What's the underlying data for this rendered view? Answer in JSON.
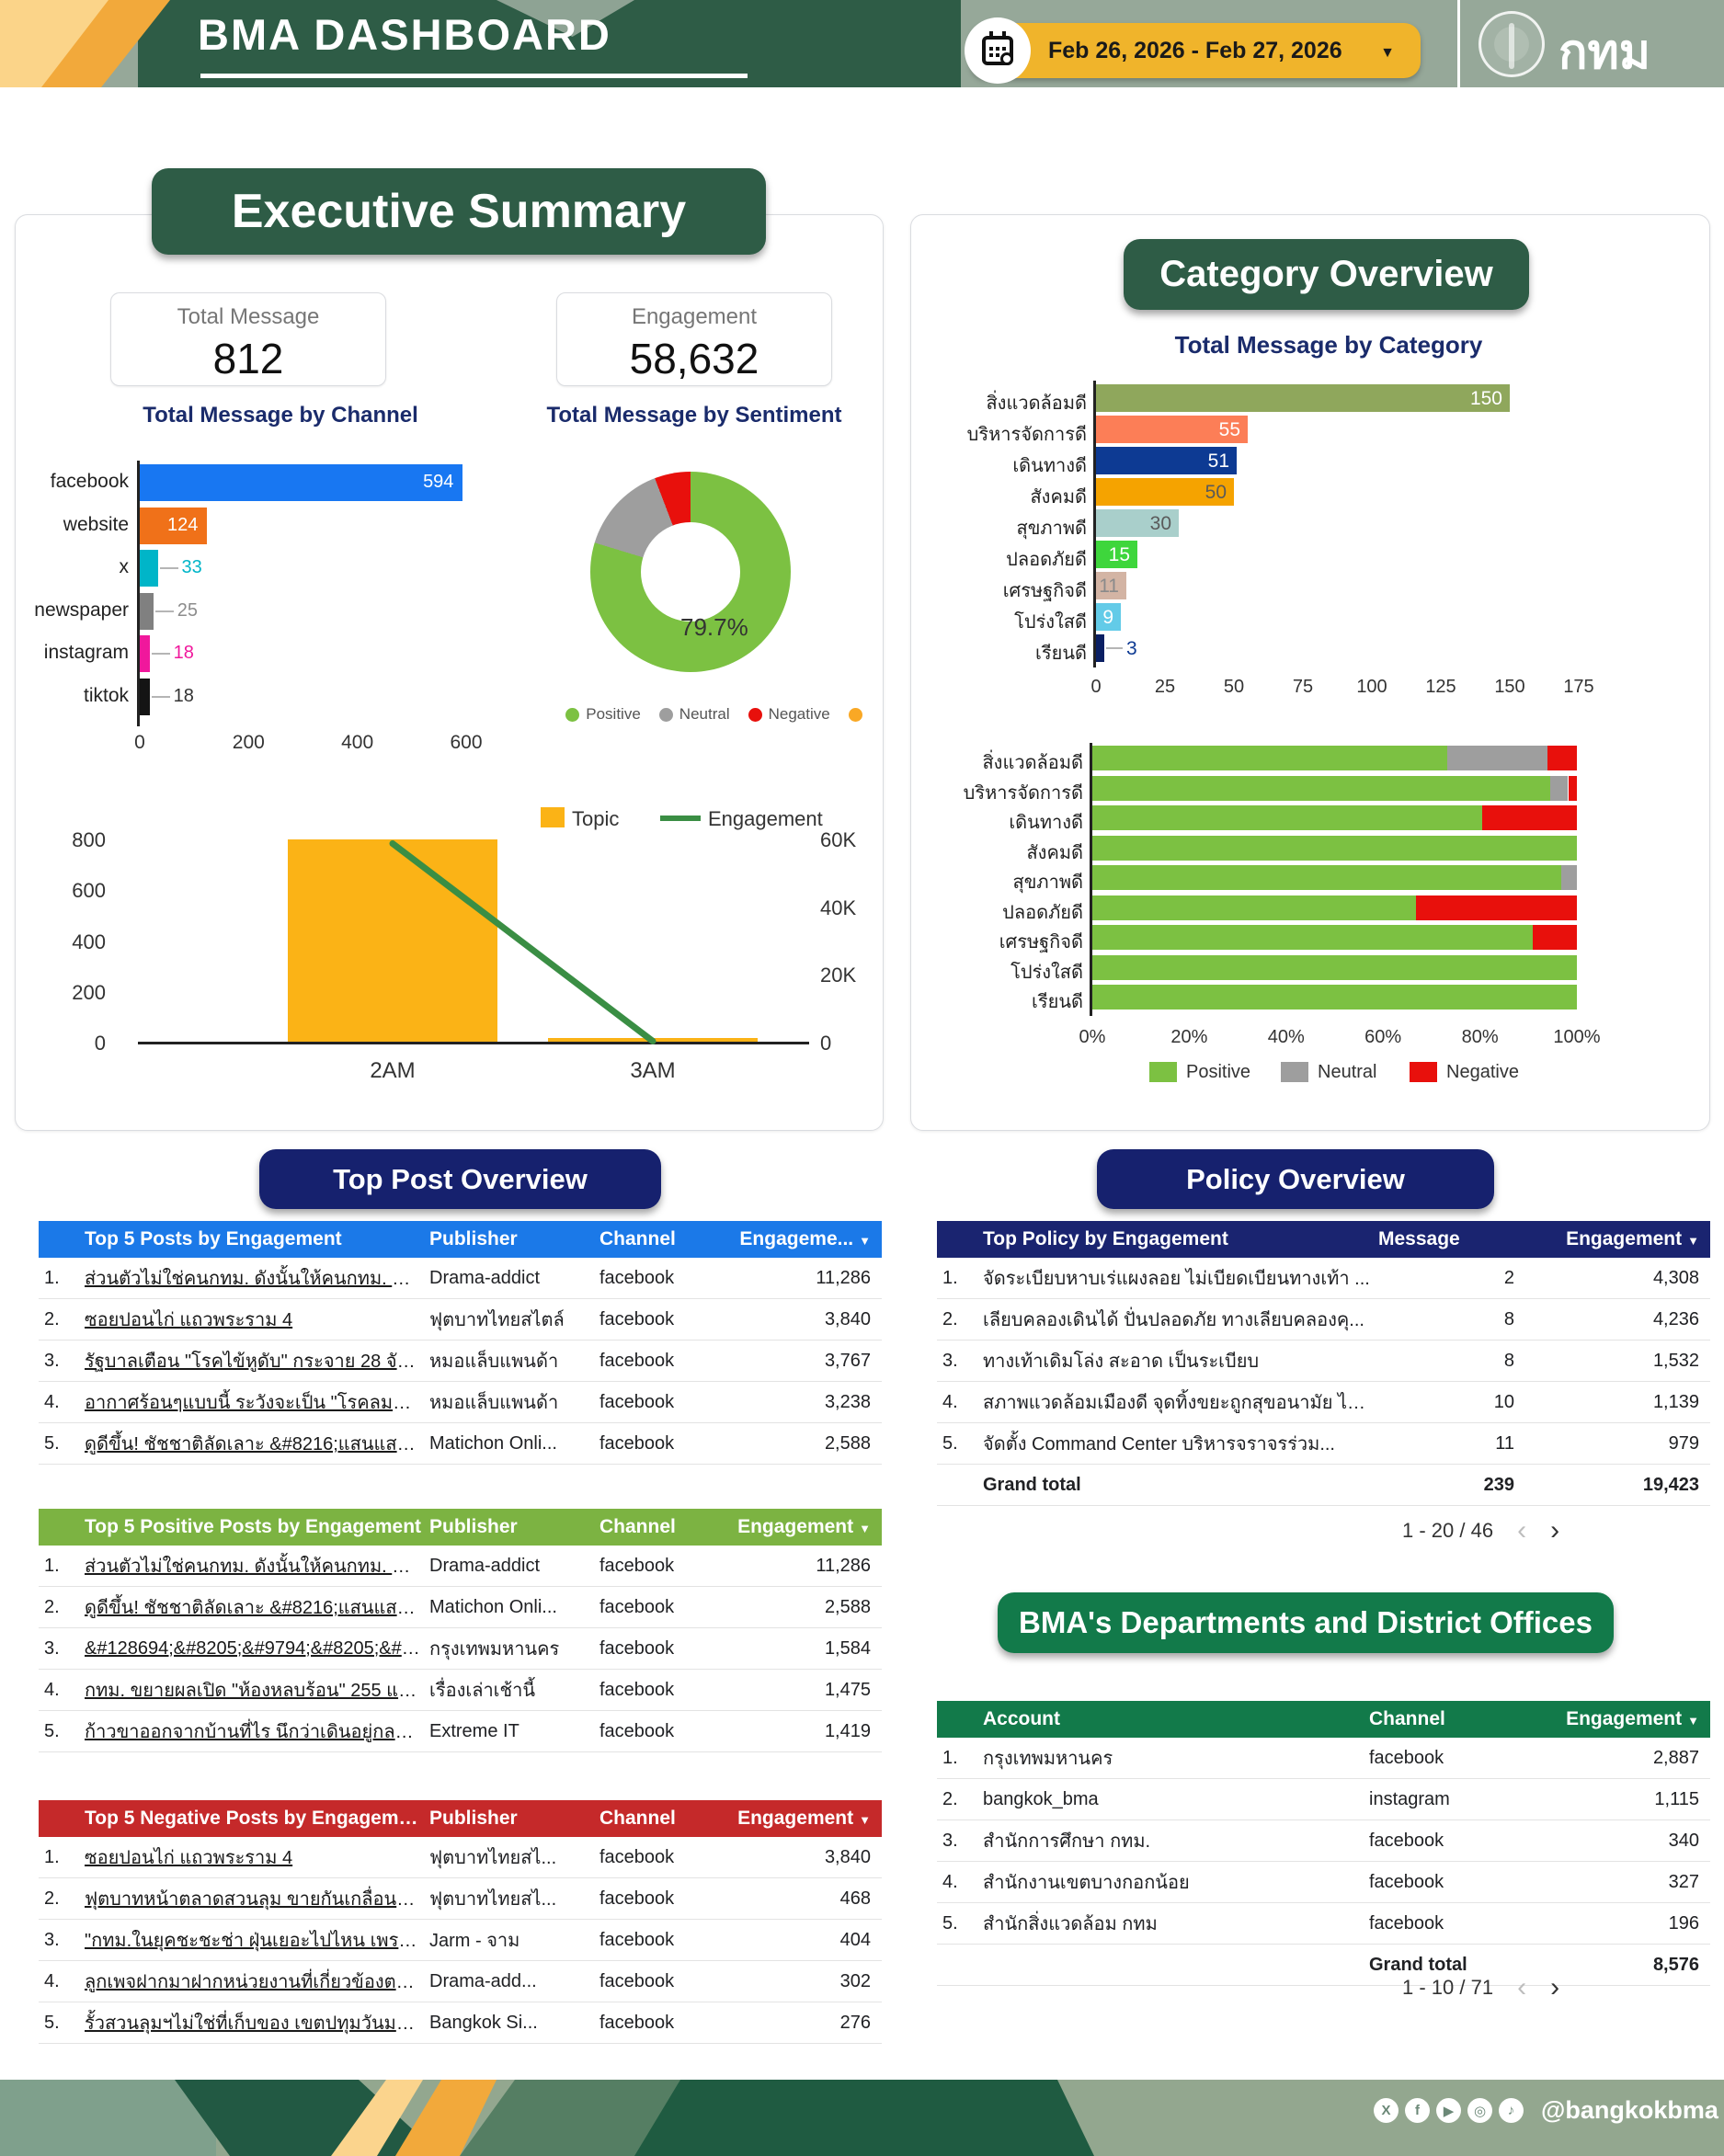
{
  "header": {
    "title": "BMA DASHBOARD",
    "date_range": "Feb 26, 2026 - Feb 27, 2026",
    "logo_text": "กทม"
  },
  "executive_summary": {
    "title": "Executive Summary",
    "stats": [
      {
        "label": "Total Message",
        "value": "812"
      },
      {
        "label": "Engagement",
        "value": "58,632"
      }
    ]
  },
  "category_overview": {
    "title": "Category Overview"
  },
  "chart_data": [
    {
      "id": "channel_bar",
      "type": "bar",
      "orientation": "horizontal",
      "title": "Total Message by Channel",
      "categories": [
        "facebook",
        "website",
        "x",
        "newspaper",
        "instagram",
        "tiktok"
      ],
      "values": [
        594,
        124,
        33,
        25,
        18,
        18
      ],
      "colors": [
        "#1877F2",
        "#F07119",
        "#00B5C8",
        "#808080",
        "#F0189C",
        "#141414"
      ],
      "outside_label_colors": [
        "#FFFFFF",
        "#FFFFFF",
        "#00B5C8",
        "#8C8C8C",
        "#F0189C",
        "#333333"
      ],
      "xlim": [
        0,
        600
      ],
      "x_ticks": [
        "0",
        "200",
        "400",
        "600"
      ]
    },
    {
      "id": "sentiment_donut",
      "type": "pie",
      "title": "Total Message by Sentiment",
      "labels": [
        "Positive",
        "Neutral",
        "Negative"
      ],
      "values": [
        79.7,
        14.5,
        5.8
      ],
      "colors": [
        "#7CC142",
        "#9E9E9E",
        "#E8100C"
      ],
      "center_label": "79.7%",
      "legend_extra_color": "#F9A825"
    },
    {
      "id": "topic_engagement_combo",
      "type": "bar+line",
      "categories": [
        "2AM",
        "3AM"
      ],
      "series": [
        {
          "name": "Topic",
          "type": "bar",
          "color": "#FBB316",
          "values": [
            795,
            15
          ],
          "axis": "left"
        },
        {
          "name": "Engagement",
          "type": "line",
          "color": "#3A8E44",
          "values": [
            58500,
            150
          ],
          "axis": "right"
        }
      ],
      "left_ticks": [
        "0",
        "200",
        "400",
        "600",
        "800"
      ],
      "left_max": 800,
      "right_ticks": [
        "0",
        "20K",
        "40K",
        "60K"
      ],
      "right_max": 60000
    },
    {
      "id": "category_bar",
      "type": "bar",
      "orientation": "horizontal",
      "title": "Total Message by Category",
      "categories": [
        "สิ่งแวดล้อมดี",
        "บริหารจัดการดี",
        "เดินทางดี",
        "สังคมดี",
        "สุขภาพดี",
        "ปลอดภัยดี",
        "เศรษฐกิจดี",
        "โปร่งใสดี",
        "เรียนดี"
      ],
      "values": [
        150,
        55,
        51,
        50,
        30,
        15,
        11,
        9,
        3
      ],
      "colors": [
        "#8FA75C",
        "#FC7E57",
        "#0D3A93",
        "#F5A300",
        "#A9CFCB",
        "#3ED63C",
        "#D3B4A4",
        "#63CBE8",
        "#0A1F63"
      ],
      "value_label_colors": [
        "#FFFFFF",
        "#FFFFFF",
        "#FFFFFF",
        "#5A5A5A",
        "#5A5A5A",
        "#FFFFFF",
        "#8A8A8A",
        "#FFFFFF",
        "#0D3A93"
      ],
      "xlim": [
        0,
        175
      ],
      "x_ticks": [
        "0",
        "25",
        "50",
        "75",
        "100",
        "125",
        "150",
        "175"
      ]
    },
    {
      "id": "category_stacked",
      "type": "bar",
      "stacked": true,
      "unit": "percent",
      "categories": [
        "สิ่งแวดล้อมดี",
        "บริหารจัดการดี",
        "เดินทางดี",
        "สังคมดี",
        "สุขภาพดี",
        "ปลอดภัยดี",
        "เศรษฐกิจดี",
        "โปร่งใสดี",
        "เรียนดี"
      ],
      "series": [
        {
          "name": "Positive",
          "color": "#7CC142",
          "values": [
            73.3,
            94.5,
            80.4,
            100,
            96.7,
            66.7,
            90.9,
            100,
            100
          ]
        },
        {
          "name": "Neutral",
          "color": "#9E9E9E",
          "values": [
            20.7,
            3.7,
            0,
            0,
            3.3,
            0,
            0,
            0,
            0
          ]
        },
        {
          "name": "Negative",
          "color": "#E8100C",
          "values": [
            6.0,
            1.8,
            19.6,
            0,
            0,
            33.3,
            9.1,
            0,
            0
          ]
        }
      ],
      "x_ticks": [
        "0%",
        "20%",
        "40%",
        "60%",
        "80%",
        "100%"
      ]
    }
  ],
  "top_post_overview": {
    "title": "Top Post Overview",
    "tables": [
      {
        "id": "top5",
        "header_color": "#1B79E8",
        "columns": [
          "Top 5 Posts by Engagement",
          "Publisher",
          "Channel",
          "Engageme..."
        ],
        "rows": [
          {
            "rank": "1.",
            "title": "ส่วนตัวไม่ใช่คนกทม. ดังนั้นให้คนกทม. แสดงความเ...",
            "publisher": "Drama-addict",
            "channel": "facebook",
            "engagement": "11,286"
          },
          {
            "rank": "2.",
            "title": "ซอยปอนไก่ แถวพระราม 4",
            "publisher": "ฟุตบาทไทยสไตล์",
            "channel": "facebook",
            "engagement": "3,840"
          },
          {
            "rank": "3.",
            "title": "รัฐบาลเตือน \"โรคไข้หูดับ\" กระจาย 28 จังหวัด พบผู้...",
            "publisher": "หมอแล็บแพนด้า",
            "channel": "facebook",
            "engagement": "3,767"
          },
          {
            "rank": "4.",
            "title": "อากาศร้อนๆแบบนี้ ระวังจะเป็น \"โรคลมแดด หรือฮีท...",
            "publisher": "หมอแล็บแพนด้า",
            "channel": "facebook",
            "engagement": "3,238"
          },
          {
            "rank": "5.",
            "title": "ดูดีขึ้น! ชัชชาติลัดเลาะ &#8216;แสนแสบ&#8217...",
            "publisher": "Matichon Onli...",
            "channel": "facebook",
            "engagement": "2,588"
          }
        ]
      },
      {
        "id": "top5_positive",
        "header_color": "#7CB342",
        "columns": [
          "Top 5 Positive Posts by Engagement",
          "Publisher",
          "Channel",
          "Engagement"
        ],
        "rows": [
          {
            "rank": "1.",
            "title": "ส่วนตัวไม่ใช่คนกทม. ดังนั้นให้คนกทม. แสดงความเ...",
            "publisher": "Drama-addict",
            "channel": "facebook",
            "engagement": "11,286"
          },
          {
            "rank": "2.",
            "title": "ดูดีขึ้น! ชัชชาติลัดเลาะ &#8216;แสนแสบ&#8217;...",
            "publisher": "Matichon Onli...",
            "channel": "facebook",
            "engagement": "2,588"
          },
          {
            "rank": "3.",
            "title": "&#128694;&#8205;&#9794;&#8205;&#10...",
            "publisher": "กรุงเทพมหานคร",
            "channel": "facebook",
            "engagement": "1,584"
          },
          {
            "rank": "4.",
            "title": "กทม. ขยายผลเปิด \"ห้องหลบร้อน\" 255 แห่งทั่วกรุง เ...",
            "publisher": "เรื่องเล่าเช้านี้",
            "channel": "facebook",
            "engagement": "1,475"
          },
          {
            "rank": "5.",
            "title": "ก้าวขาออกจากบ้านที่ไร นึกว่าเดินอยู่กลางทะเลทราย...",
            "publisher": "Extreme IT",
            "channel": "facebook",
            "engagement": "1,419"
          }
        ]
      },
      {
        "id": "top5_negative",
        "header_color": "#C5292A",
        "columns": [
          "Top 5 Negative Posts by Engagement",
          "Publisher",
          "Channel",
          "Engagement"
        ],
        "rows": [
          {
            "rank": "1.",
            "title": "ซอยปอนไก่ แถวพระราม 4",
            "publisher": "ฟุตบาทไทยสไ...",
            "channel": "facebook",
            "engagement": "3,840"
          },
          {
            "rank": "2.",
            "title": "ฟุตบาทหน้าตลาดสวนลุม ขายกันเกลื่อนทะลักออกมาบน...",
            "publisher": "ฟุตบาทไทยสไ...",
            "channel": "facebook",
            "engagement": "468"
          },
          {
            "rank": "3.",
            "title": "\"กทม.ในยุคชะชะช่า ฝุ่นเยอะไปไหน เพราะมึงเร่งรัดก่อส...",
            "publisher": "Jarm - จาม",
            "channel": "facebook",
            "engagement": "404"
          },
          {
            "rank": "4.",
            "title": "ลูกเพจฝากมาฝากหน่วยงานที่เกี่ยวข้องตรวจสอบด้วยครั...",
            "publisher": "Drama-add...",
            "channel": "facebook",
            "engagement": "302"
          },
          {
            "rank": "5.",
            "title": "รั้วสวนลุมฯไม่ใช่ที่เก็บของ เขตปทุมวันมาเอาออกไปด้วย...",
            "publisher": "Bangkok Si...",
            "channel": "facebook",
            "engagement": "276"
          }
        ]
      }
    ]
  },
  "policy_overview": {
    "title": "Policy Overview",
    "header_color": "#1A2470",
    "columns": [
      "Top Policy by Engagement",
      "Message",
      "Engagement"
    ],
    "rows": [
      {
        "rank": "1.",
        "title": "จัดระเบียบหาบเร่แผงลอย ไม่เบียดเบียนทางเท้า ...",
        "message": "2",
        "engagement": "4,308"
      },
      {
        "rank": "2.",
        "title": "เลียบคลองเดินได้ ปั่นปลอดภัย ทางเลียบคลองคุ...",
        "message": "8",
        "engagement": "4,236"
      },
      {
        "rank": "3.",
        "title": "ทางเท้าเดิมโล่ง สะอาด เป็นระเบียบ",
        "message": "8",
        "engagement": "1,532"
      },
      {
        "rank": "4.",
        "title": "สภาพแวดล้อมเมืองดี จุดทิ้งขยะถูกสุขอนามัย ไม่...",
        "message": "10",
        "engagement": "1,139"
      },
      {
        "rank": "5.",
        "title": "จัดตั้ง Command Center บริหารจราจรร่วม...",
        "message": "11",
        "engagement": "979"
      }
    ],
    "grand_total": {
      "label": "Grand total",
      "message": "239",
      "engagement": "19,423"
    },
    "pagination": "1 - 20 / 46"
  },
  "departments": {
    "title": "BMA's Departments and District Offices",
    "header_color": "#127A4A",
    "columns": [
      "Account",
      "Channel",
      "Engagement"
    ],
    "rows": [
      {
        "rank": "1.",
        "account": "กรุงเทพมหานคร",
        "channel": "facebook",
        "engagement": "2,887"
      },
      {
        "rank": "2.",
        "account": "bangkok_bma",
        "channel": "instagram",
        "engagement": "1,115"
      },
      {
        "rank": "3.",
        "account": "สำนักการศึกษา กทม.",
        "channel": "facebook",
        "engagement": "340"
      },
      {
        "rank": "4.",
        "account": "สำนักงานเขตบางกอกน้อย",
        "channel": "facebook",
        "engagement": "327"
      },
      {
        "rank": "5.",
        "account": "สำนักสิ่งแวดล้อม กทม",
        "channel": "facebook",
        "engagement": "196"
      }
    ],
    "grand_total": {
      "label": "Grand total",
      "engagement": "8,576"
    },
    "pagination": "1 - 10 / 71"
  },
  "footer": {
    "handle": "@bangkokbma",
    "social_icons": [
      "x",
      "facebook",
      "youtube",
      "instagram",
      "tiktok"
    ],
    "social_glyphs": [
      "X",
      "f",
      "▶",
      "◎",
      "♪"
    ]
  }
}
